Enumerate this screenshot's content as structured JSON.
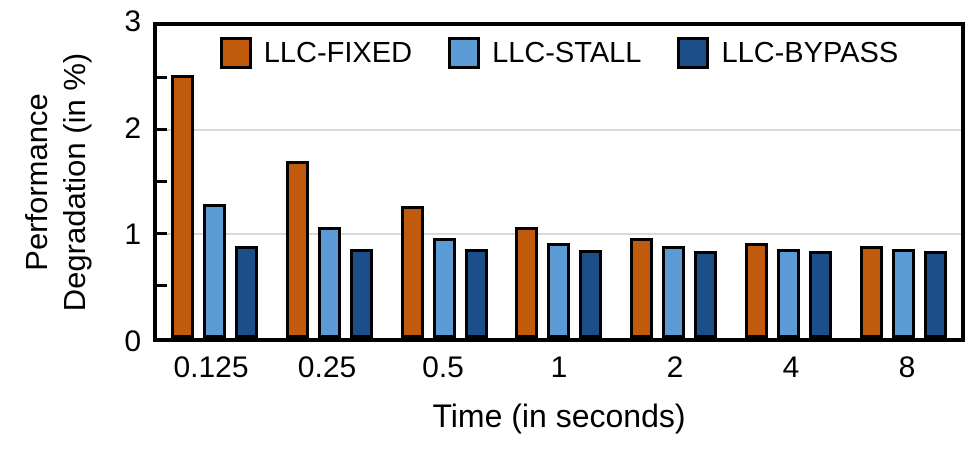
{
  "chart_data": {
    "type": "bar",
    "title": "",
    "xlabel": "Time (in seconds)",
    "ylabel": "Performance Degradation (in %)",
    "ylabel_line1": "Performance",
    "ylabel_line2": "Degradation (in %)",
    "categories": [
      "0.125",
      "0.25",
      "0.5",
      "1",
      "2",
      "4",
      "8"
    ],
    "series": [
      {
        "name": "LLC-FIXED",
        "color": "#c05a0c",
        "values": [
          2.53,
          1.7,
          1.27,
          1.07,
          0.96,
          0.91,
          0.88
        ]
      },
      {
        "name": "LLC-STALL",
        "color": "#5b9bd5",
        "values": [
          1.29,
          1.07,
          0.96,
          0.91,
          0.88,
          0.86,
          0.86
        ]
      },
      {
        "name": "LLC-BYPASS",
        "color": "#1c4e89",
        "values": [
          0.88,
          0.86,
          0.86,
          0.85,
          0.84,
          0.84,
          0.84
        ]
      }
    ],
    "ylim": [
      0,
      3
    ],
    "yticks": [
      0,
      1,
      2,
      3
    ],
    "minor_ytick_marks": [
      0.5,
      1,
      1.5,
      2,
      2.5
    ],
    "gridlines_at": [
      1,
      2
    ],
    "grid": "horizontal",
    "legend_position": "top-center"
  },
  "colors": {
    "gridline": "#d9d9d9",
    "axis": "#000000",
    "bar_border": "#000000",
    "background": "#ffffff"
  }
}
